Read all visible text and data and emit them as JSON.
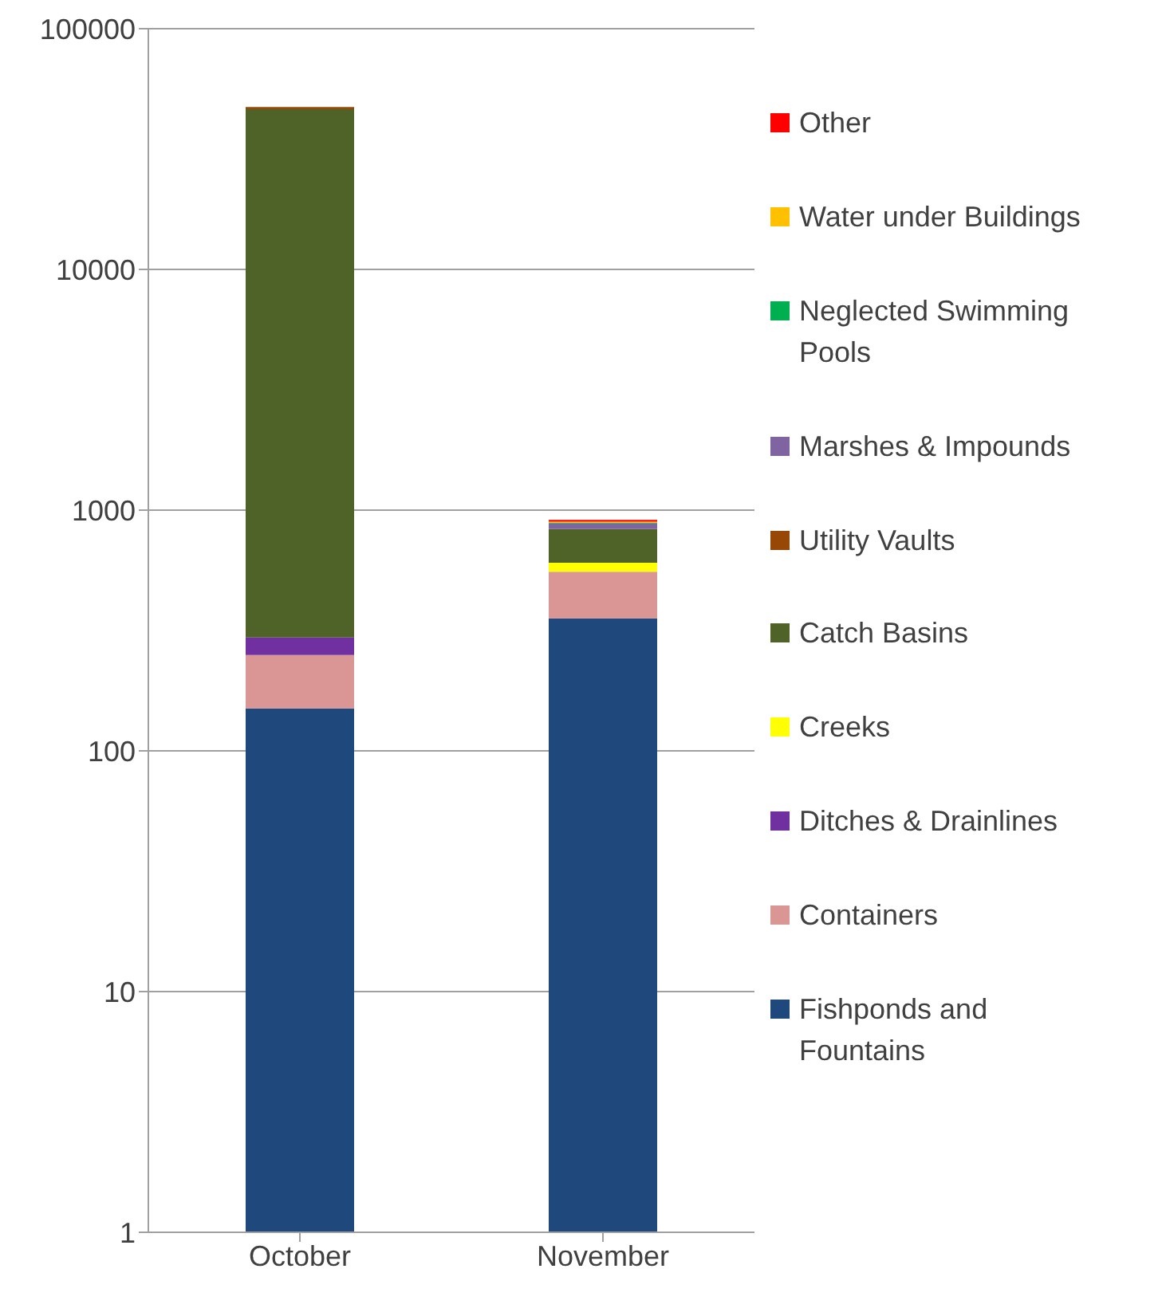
{
  "chart_data": {
    "type": "bar",
    "stacked": true,
    "log": true,
    "categories": [
      "October",
      "November"
    ],
    "series": [
      {
        "name": "Fishponds and Fountains",
        "color": "#1f497d",
        "values": [
          150,
          355
        ]
      },
      {
        "name": "Containers",
        "color": "#d99694",
        "values": [
          100,
          200
        ]
      },
      {
        "name": "Ditches & Drainlines",
        "color": "#7030a0",
        "values": [
          46,
          null
        ]
      },
      {
        "name": "Creeks",
        "color": "#ffff00",
        "values": [
          null,
          50
        ]
      },
      {
        "name": "Catch Basins",
        "color": "#4f6228",
        "values": [
          46000,
          230
        ]
      },
      {
        "name": "Utility Vaults",
        "color": "#974706",
        "values": [
          1000,
          null
        ]
      },
      {
        "name": "Marshes & Impounds",
        "color": "#8064a2",
        "values": [
          null,
          45
        ]
      },
      {
        "name": "Neglected Swimming Pools",
        "color": "#00b050",
        "values": [
          null,
          5
        ]
      },
      {
        "name": "Water under Buildings",
        "color": "#ffc000",
        "values": [
          null,
          10
        ]
      },
      {
        "name": "Other",
        "color": "#ff0000",
        "values": [
          null,
          15
        ]
      }
    ],
    "ylim": [
      1,
      100000
    ],
    "yticks": [
      1,
      10,
      100,
      1000,
      10000,
      100000
    ],
    "grid": "y",
    "legend": "right"
  }
}
